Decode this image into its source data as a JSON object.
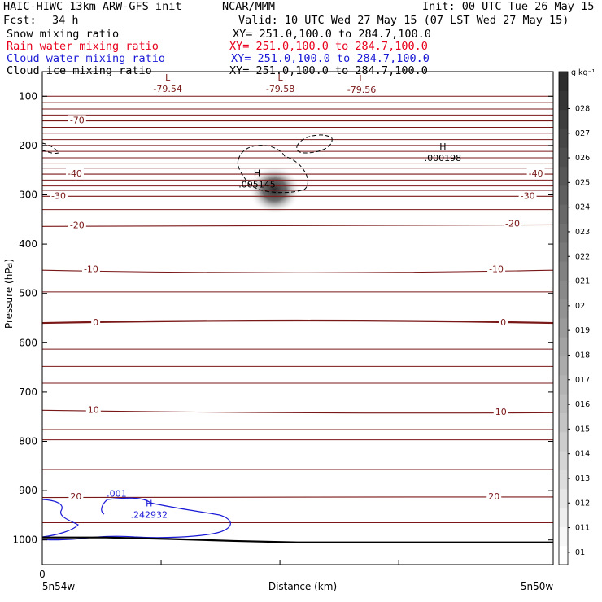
{
  "header": {
    "model": "HAIC-HIWC 13km ARW-GFS init",
    "org": "NCAR/MMM",
    "init": "Init: 00 UTC Tue 26 May 15",
    "fcst_label": "Fcst:",
    "fcst_value": "34 h",
    "valid": "Valid: 10 UTC Wed 27 May 15 (07 LST Wed 27 May 15)"
  },
  "fields": [
    {
      "name": "Snow mixing ratio",
      "xy": "XY= 251.0,100.0 to 284.7,100.0",
      "color": "#000000"
    },
    {
      "name": "Rain water mixing ratio",
      "xy": "XY= 251.0,100.0 to 284.7,100.0",
      "color": "#e8001c"
    },
    {
      "name": "Cloud water mixing ratio",
      "xy": "XY= 251.0,100.0 to 284.7,100.0",
      "color": "#1a1ad6"
    },
    {
      "name": "Cloud ice mixing ratio",
      "xy": "XY= 251.0,100.0 to 284.7,100.0",
      "color": "#000000"
    }
  ],
  "chart_data": {
    "type": "cross-section",
    "ylabel": "Pressure (hPa)",
    "xlabel": "Distance (km)",
    "x_start_label": "5n54w",
    "x_end_label": "5n50w",
    "x_tick_zero": "0",
    "y_ticks": [
      100,
      200,
      300,
      400,
      500,
      600,
      700,
      800,
      900,
      1000
    ],
    "ylim": [
      50,
      1050
    ],
    "xlim": [
      0,
      440
    ],
    "colorbar": {
      "unit_label": "g kg⁻¹",
      "ticks": [
        ".01",
        ".011",
        ".012",
        ".013",
        ".014",
        ".015",
        ".016",
        ".017",
        ".018",
        ".019",
        ".02",
        ".021",
        ".022",
        ".023",
        ".024",
        ".025",
        ".026",
        ".027",
        ".028"
      ],
      "range": [
        0.0095,
        0.0295
      ]
    },
    "temperature_contours": [
      {
        "value": -70,
        "label": "-70",
        "p": [
          150,
          150,
          150
        ]
      },
      {
        "value": -40,
        "label": "-40",
        "p": [
          258,
          258,
          258
        ]
      },
      {
        "value": -30,
        "label": "-30",
        "p": [
          303,
          303,
          303
        ]
      },
      {
        "value": -20,
        "label": "-20",
        "p": [
          364,
          363,
          361
        ]
      },
      {
        "value": -10,
        "label": "-10",
        "p": [
          453,
          458,
          453
        ]
      },
      {
        "value": 0,
        "label": "0",
        "p": [
          560,
          555,
          560
        ]
      },
      {
        "value": 10,
        "label": "10",
        "p": [
          737,
          742,
          742
        ]
      },
      {
        "value": 20,
        "label": "20",
        "p": [
          914,
          913,
          913
        ]
      }
    ],
    "temperature_labels": [
      {
        "text": "-70",
        "x": 30,
        "p": 148
      },
      {
        "text": "-40",
        "x": 28,
        "p": 256
      },
      {
        "text": "-40",
        "x": 425,
        "p": 256
      },
      {
        "text": "-30",
        "x": 14,
        "p": 302
      },
      {
        "text": "-30",
        "x": 418,
        "p": 302
      },
      {
        "text": "-20",
        "x": 30,
        "p": 361
      },
      {
        "text": "-20",
        "x": 405,
        "p": 358
      },
      {
        "text": "-10",
        "x": 42,
        "p": 450
      },
      {
        "text": "-10",
        "x": 391,
        "p": 450
      },
      {
        "text": "0",
        "x": 46,
        "p": 558
      },
      {
        "text": "0",
        "x": 397,
        "p": 558
      },
      {
        "text": "10",
        "x": 44,
        "p": 736
      },
      {
        "text": "10",
        "x": 395,
        "p": 740
      },
      {
        "text": "20",
        "x": 29,
        "p": 911
      },
      {
        "text": "20",
        "x": 389,
        "p": 911
      }
    ],
    "extrema": [
      {
        "marker": "L",
        "value": "-79.54",
        "x": 108,
        "p": 78,
        "color": "#7a1717"
      },
      {
        "marker": "L",
        "value": "-79.58",
        "x": 205,
        "p": 78,
        "color": "#7a1717"
      },
      {
        "marker": "L",
        "value": "-79.56",
        "x": 275,
        "p": 80,
        "color": "#7a1717"
      },
      {
        "marker": "H",
        "value": ".000198",
        "x": 345,
        "p": 218,
        "color": "#000000"
      },
      {
        "marker": "H",
        "value": ".005145",
        "x": 185,
        "p": 272,
        "color": "#000000"
      },
      {
        "marker": "H",
        "value": ".242932",
        "x": 92,
        "p": 942,
        "color": "#1a1ad6"
      }
    ],
    "cloud_water_label": {
      "text": ".001",
      "x": 64,
      "p": 906
    },
    "ice_max": {
      "x": 200,
      "p": 290,
      "value": 0.005145
    },
    "surface_pressure": [
      995,
      995,
      998,
      1002,
      1005,
      1005,
      1005,
      1005,
      1005
    ],
    "colors": {
      "temperature": "#7a1717",
      "cloud_water": "#1a1ad6",
      "snow": "#000000"
    }
  }
}
